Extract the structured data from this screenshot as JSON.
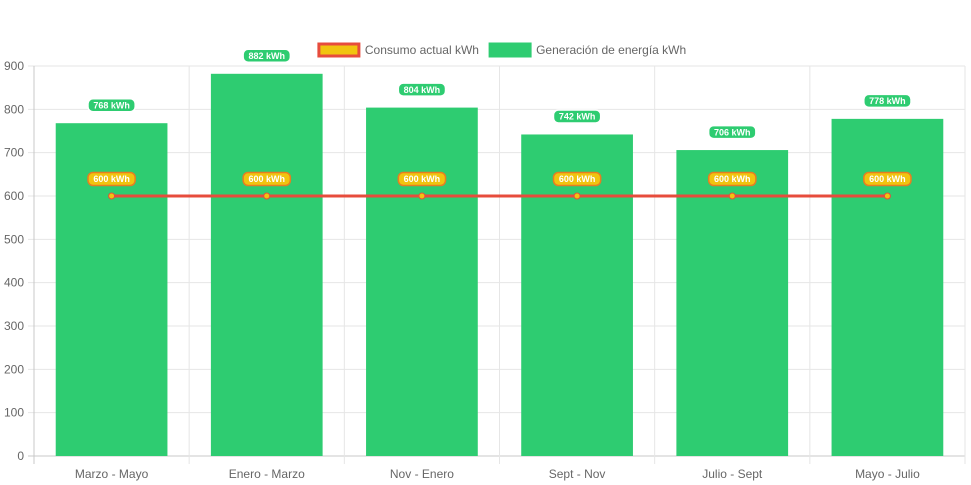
{
  "chart_data": {
    "type": "bar",
    "categories": [
      "Marzo - Mayo",
      "Enero - Marzo",
      "Nov - Enero",
      "Sept - Nov",
      "Julio - Sept",
      "Mayo - Julio"
    ],
    "ylim": [
      0,
      900
    ],
    "y_ticks": [
      0,
      100,
      200,
      300,
      400,
      500,
      600,
      700,
      800,
      900
    ],
    "grid": true,
    "legend_position": "top-center",
    "series": [
      {
        "name": "Generación de energía kWh",
        "kind": "bar",
        "color": "#2ecc71",
        "values": [
          768,
          882,
          804,
          742,
          706,
          778
        ],
        "labels": [
          "768 kWh",
          "882 kWh",
          "804 kWh",
          "742 kWh",
          "706 kWh",
          "778 kWh"
        ]
      },
      {
        "name": "Consumo actual kWh",
        "kind": "line",
        "color": "#e74c3c",
        "point_color": "#f1c40f",
        "values": [
          600,
          600,
          600,
          600,
          600,
          600
        ],
        "labels": [
          "600 kWh",
          "600 kWh",
          "600 kWh",
          "600 kWh",
          "600 kWh",
          "600 kWh"
        ]
      }
    ],
    "legend": [
      {
        "label": "Consumo actual kWh",
        "fill": "#f1c40f",
        "stroke": "#e74c3c"
      },
      {
        "label": "Generación de energía kWh",
        "fill": "#2ecc71",
        "stroke": "#2ecc71"
      }
    ]
  }
}
